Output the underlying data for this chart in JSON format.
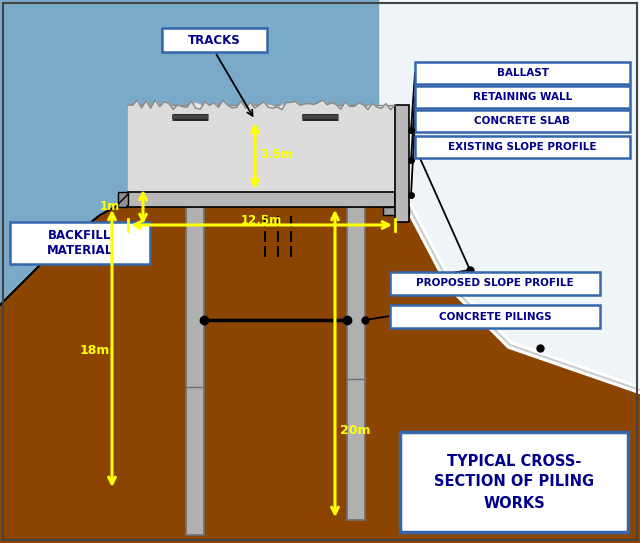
{
  "bg_color": "#7aaac8",
  "ground_color": "#8B4500",
  "slab_color": "#b8b8b8",
  "pile_color": "#b0b0b0",
  "ballast_color": "#e0e0e0",
  "text_label_color": "#00008B",
  "yellow": "#FFFF00",
  "white": "#FFFFFF",
  "black": "#000000",
  "title_text": "TYPICAL CROSS-\nSECTION OF PILING\nWORKS",
  "labels_right": [
    "BALLAST",
    "RETAINING WALL",
    "CONCRETE SLAB",
    "EXISTING SLOPE PROFILE"
  ],
  "label_backfill": "BACKFILL\nMATERIAL",
  "label_proposed": "PROPOSED SLOPE PROFILE",
  "label_pilings": "CONCRETE PILINGS",
  "label_tracks": "TRACKS",
  "dim_35": "3.5m",
  "dim_125": "12.5m",
  "dim_1": "1m",
  "dim_18": "18m",
  "dim_20": "20m"
}
